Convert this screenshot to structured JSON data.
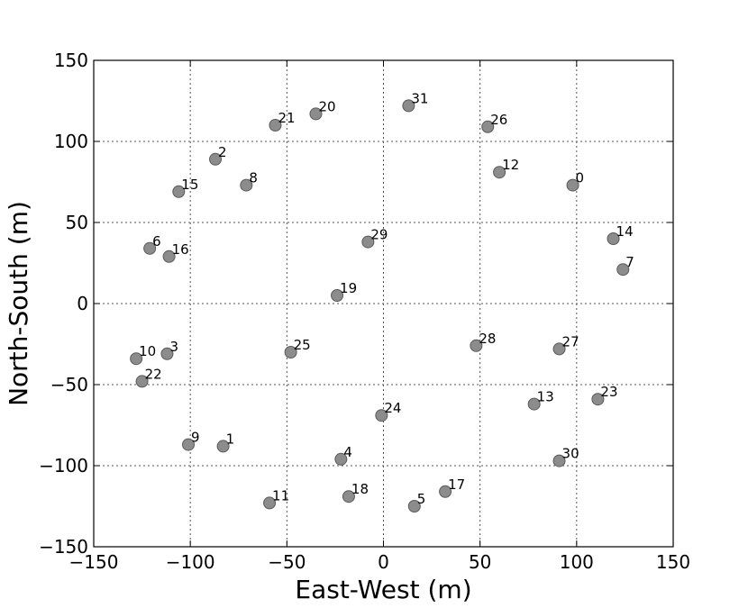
{
  "chart_data": {
    "type": "scatter",
    "xlabel": "East-West (m)",
    "ylabel": "North-South (m)",
    "xlim": [
      -150,
      150
    ],
    "ylim": [
      -150,
      150
    ],
    "xticks": [
      -150,
      -100,
      -50,
      0,
      50,
      100,
      150
    ],
    "yticks": [
      -150,
      -100,
      -50,
      0,
      50,
      100,
      150
    ],
    "xtick_labels": [
      "−150",
      "−100",
      "−50",
      "0",
      "50",
      "100",
      "150"
    ],
    "ytick_labels": [
      "−150",
      "−100",
      "−50",
      "0",
      "50",
      "100",
      "150"
    ],
    "grid": true,
    "marker_color": "#8c8c8c",
    "points": [
      {
        "label": "0",
        "x": 98,
        "y": 73
      },
      {
        "label": "1",
        "x": -83,
        "y": -88
      },
      {
        "label": "2",
        "x": -87,
        "y": 89
      },
      {
        "label": "3",
        "x": -112,
        "y": -31
      },
      {
        "label": "4",
        "x": -22,
        "y": -96
      },
      {
        "label": "5",
        "x": 16,
        "y": -125
      },
      {
        "label": "6",
        "x": -121,
        "y": 34
      },
      {
        "label": "7",
        "x": 124,
        "y": 21
      },
      {
        "label": "8",
        "x": -71,
        "y": 73
      },
      {
        "label": "9",
        "x": -101,
        "y": -87
      },
      {
        "label": "10",
        "x": -128,
        "y": -34
      },
      {
        "label": "11",
        "x": -59,
        "y": -123
      },
      {
        "label": "12",
        "x": 60,
        "y": 81
      },
      {
        "label": "13",
        "x": 78,
        "y": -62
      },
      {
        "label": "14",
        "x": 119,
        "y": 40
      },
      {
        "label": "15",
        "x": -106,
        "y": 69
      },
      {
        "label": "16",
        "x": -111,
        "y": 29
      },
      {
        "label": "17",
        "x": 32,
        "y": -116
      },
      {
        "label": "18",
        "x": -18,
        "y": -119
      },
      {
        "label": "19",
        "x": -24,
        "y": 5
      },
      {
        "label": "20",
        "x": -35,
        "y": 117
      },
      {
        "label": "21",
        "x": -56,
        "y": 110
      },
      {
        "label": "22",
        "x": -125,
        "y": -48
      },
      {
        "label": "23",
        "x": 111,
        "y": -59
      },
      {
        "label": "24",
        "x": -1,
        "y": -69
      },
      {
        "label": "25",
        "x": -48,
        "y": -30
      },
      {
        "label": "26",
        "x": 54,
        "y": 109
      },
      {
        "label": "27",
        "x": 91,
        "y": -28
      },
      {
        "label": "28",
        "x": 48,
        "y": -26
      },
      {
        "label": "29",
        "x": -8,
        "y": 38
      },
      {
        "label": "30",
        "x": 91,
        "y": -97
      },
      {
        "label": "31",
        "x": 13,
        "y": 122
      }
    ]
  }
}
